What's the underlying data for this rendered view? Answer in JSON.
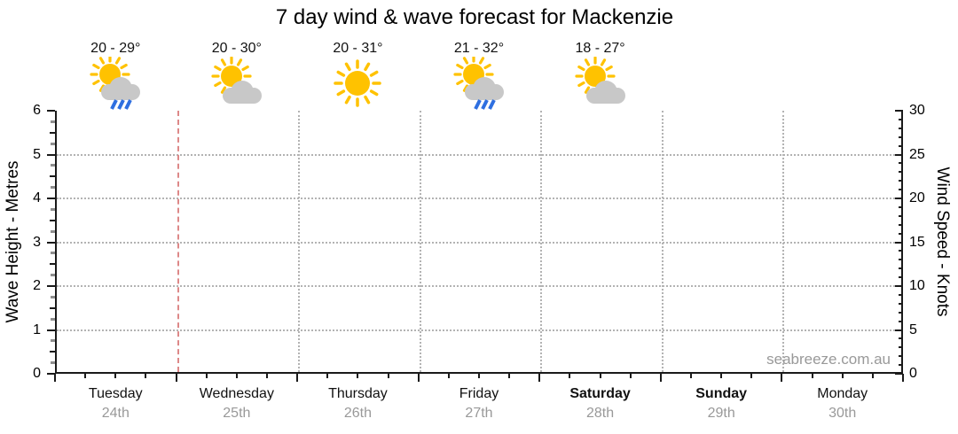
{
  "title": "7 day wind & wave forecast for Mackenzie",
  "watermark": "seabreeze.com.au",
  "axes": {
    "wave": {
      "title": "Wave Height - Metres",
      "min": 0,
      "max": 6,
      "ticks": [
        0,
        1,
        2,
        3,
        4,
        5,
        6
      ]
    },
    "wind": {
      "title": "Wind Speed - Knots",
      "min": 0,
      "max": 30,
      "ticks": [
        0,
        5,
        10,
        15,
        20,
        25,
        30
      ]
    }
  },
  "days": [
    {
      "name": "Tuesday",
      "date": "24th",
      "temp": "20 - 29°",
      "condition": "sun-cloud-rain",
      "weekend": false
    },
    {
      "name": "Wednesday",
      "date": "25th",
      "temp": "20 - 30°",
      "condition": "sun-cloud",
      "weekend": false
    },
    {
      "name": "Thursday",
      "date": "26th",
      "temp": "20 - 31°",
      "condition": "sun",
      "weekend": false
    },
    {
      "name": "Friday",
      "date": "27th",
      "temp": "21 - 32°",
      "condition": "sun-cloud-rain",
      "weekend": false
    },
    {
      "name": "Saturday",
      "date": "28th",
      "temp": "18 - 27°",
      "condition": "sun-cloud",
      "weekend": true
    },
    {
      "name": "Sunday",
      "date": "29th",
      "temp": null,
      "condition": null,
      "weekend": true
    },
    {
      "name": "Monday",
      "date": "30th",
      "temp": null,
      "condition": null,
      "weekend": false
    }
  ],
  "current_time_marker": {
    "at_day_boundary_index": 1,
    "description": "dashed red line at start of Wednesday 25th",
    "color": "#dd8888"
  },
  "colors": {
    "sun": "#FFC200",
    "cloud": "#C8C8C8",
    "rain": "#2E6FE0",
    "grid": "#B3B3B3",
    "marker": "#DD8888",
    "muted_text": "#999999",
    "axis": "#1A1A1A"
  },
  "chart_data": {
    "type": "line",
    "title": "7 day wind & wave forecast for Mackenzie",
    "categories": [
      "Tuesday 24th",
      "Wednesday 25th",
      "Thursday 26th",
      "Friday 27th",
      "Saturday 28th",
      "Sunday 29th",
      "Monday 30th"
    ],
    "series": [],
    "series_note": "No wind or wave data series are plotted; the plot area is empty apart from gridlines and the current-time marker.",
    "left_axis": {
      "label": "Wave Height - Metres",
      "range": [
        0,
        6
      ],
      "ticks": [
        0,
        1,
        2,
        3,
        4,
        5,
        6
      ],
      "minor_ticks_every": 0.25,
      "gridlines_at": [
        1,
        2,
        3,
        4,
        5
      ],
      "grid_style": "dotted"
    },
    "right_axis": {
      "label": "Wind Speed - Knots",
      "range": [
        0,
        30
      ],
      "ticks": [
        0,
        5,
        10,
        15,
        20,
        25,
        30
      ],
      "minor_ticks_every": 1
    },
    "x_axis": {
      "major_ticks": "day boundaries",
      "minor_ticks": "6-hour intervals",
      "vertical_gridlines_at_day_boundaries": true
    },
    "legend": "none",
    "annotations": [
      {
        "day": "Tuesday 24th",
        "temp_label": "20 - 29°",
        "temp_min": 20,
        "temp_max": 29,
        "condition": "sun-cloud-rain"
      },
      {
        "day": "Wednesday 25th",
        "temp_label": "20 - 30°",
        "temp_min": 20,
        "temp_max": 30,
        "condition": "sun-cloud"
      },
      {
        "day": "Thursday 26th",
        "temp_label": "20 - 31°",
        "temp_min": 20,
        "temp_max": 31,
        "condition": "sun"
      },
      {
        "day": "Friday 27th",
        "temp_label": "21 - 32°",
        "temp_min": 21,
        "temp_max": 32,
        "condition": "sun-cloud-rain"
      },
      {
        "day": "Saturday 28th",
        "temp_label": "18 - 27°",
        "temp_min": 18,
        "temp_max": 27,
        "condition": "sun-cloud"
      }
    ],
    "current_time_marker": {
      "position": "start of Wednesday 25th",
      "style": "dashed",
      "color": "#dd8888"
    },
    "watermark": "seabreeze.com.au"
  }
}
